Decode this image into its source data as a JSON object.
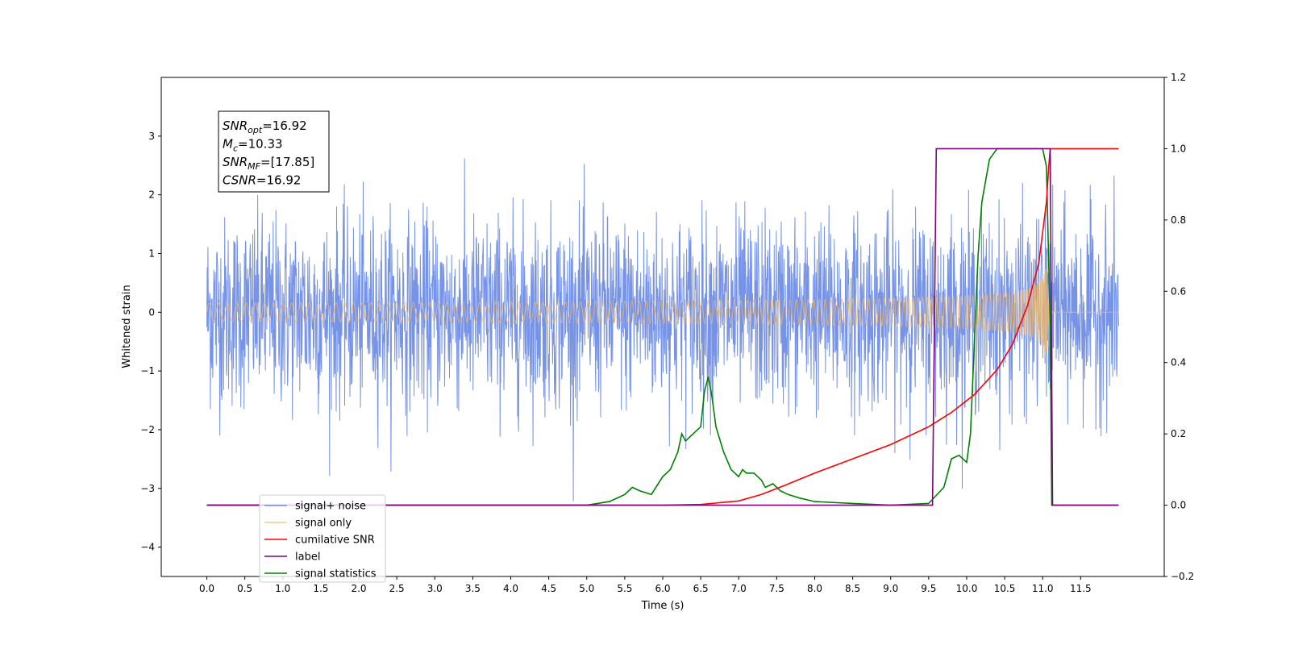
{
  "chart_data": {
    "type": "line",
    "xlabel": "Time (s)",
    "ylabel": "Whitened strain",
    "xlim": [
      -0.6,
      12.6
    ],
    "ylim": [
      -4.5,
      4.0
    ],
    "ylim_right": [
      -0.2,
      1.2
    ],
    "x_ticks": [
      "0.0",
      "0.5",
      "1.0",
      "1.5",
      "2.0",
      "2.5",
      "3.0",
      "3.5",
      "4.0",
      "4.5",
      "5.0",
      "5.5",
      "6.0",
      "6.5",
      "7.0",
      "7.5",
      "8.0",
      "8.5",
      "9.0",
      "9.5",
      "10.0",
      "10.5",
      "11.0",
      "11.5"
    ],
    "y_ticks_left": [
      "3",
      "2",
      "1",
      "0",
      "−1",
      "−2",
      "−3",
      "−4"
    ],
    "y_ticks_right": [
      "1.2",
      "1.0",
      "0.8",
      "0.6",
      "0.4",
      "0.2",
      "0.0",
      "−0.2"
    ],
    "legend_position": "lower-left",
    "colors": {
      "signal_noise": "#6f8de6",
      "signal_only": "#f2b865",
      "cumulative_snr": "#ff0000",
      "label": "#800080",
      "signal_statistics": "#008000"
    },
    "annotation": {
      "lines": [
        {
          "base": "SNR",
          "sub": "opt",
          "value": "=16.92"
        },
        {
          "base": "M",
          "sub": "c",
          "value": "=10.33"
        },
        {
          "base": "SNR",
          "sub": "MF",
          "value": "=[17.85]"
        },
        {
          "base": "CSNR",
          "sub": "",
          "value": "=16.92"
        }
      ]
    },
    "series": [
      {
        "name": "signal+ noise",
        "axis": "left",
        "x_range": [
          0,
          12
        ],
        "amplitude_sigma": 0.8
      },
      {
        "name": "signal only",
        "axis": "left",
        "x_range": [
          0,
          12
        ],
        "chirp_merger_time": 11.05,
        "peak_amplitude": 1.1
      },
      {
        "name": "cumilative SNR",
        "axis": "right",
        "x": [
          0,
          6.0,
          6.5,
          7.0,
          7.3,
          7.6,
          8.0,
          8.5,
          9.0,
          9.5,
          9.8,
          10.1,
          10.4,
          10.6,
          10.8,
          10.95,
          11.05,
          11.08,
          11.1,
          12.0
        ],
        "y": [
          0,
          0,
          0.002,
          0.012,
          0.03,
          0.055,
          0.09,
          0.13,
          0.17,
          0.22,
          0.26,
          0.31,
          0.38,
          0.45,
          0.56,
          0.68,
          0.85,
          0.95,
          1.0,
          1.0
        ]
      },
      {
        "name": "label",
        "axis": "right",
        "x": [
          0,
          9.55,
          9.6,
          11.1,
          11.13,
          12.0
        ],
        "y": [
          0,
          0,
          1.0,
          1.0,
          0,
          0
        ]
      },
      {
        "name": "signal statistics",
        "axis": "right",
        "x": [
          0,
          2.0,
          3.0,
          4.0,
          5.0,
          5.3,
          5.5,
          5.6,
          5.7,
          5.85,
          6.0,
          6.1,
          6.2,
          6.25,
          6.3,
          6.4,
          6.5,
          6.55,
          6.6,
          6.65,
          6.7,
          6.8,
          6.9,
          7.0,
          7.05,
          7.1,
          7.2,
          7.3,
          7.35,
          7.45,
          7.55,
          7.65,
          7.8,
          8.0,
          8.5,
          9.0,
          9.5,
          9.7,
          9.8,
          9.9,
          10.0,
          10.05,
          10.1,
          10.15,
          10.2,
          10.3,
          10.4,
          10.6,
          11.0,
          11.05,
          11.1,
          11.12,
          12.0
        ],
        "y": [
          0,
          0,
          0,
          0,
          0,
          0.01,
          0.03,
          0.05,
          0.04,
          0.03,
          0.08,
          0.1,
          0.15,
          0.2,
          0.18,
          0.2,
          0.22,
          0.32,
          0.36,
          0.3,
          0.22,
          0.15,
          0.1,
          0.08,
          0.1,
          0.09,
          0.09,
          0.07,
          0.05,
          0.06,
          0.04,
          0.03,
          0.02,
          0.01,
          0.005,
          0,
          0.005,
          0.05,
          0.13,
          0.14,
          0.12,
          0.2,
          0.45,
          0.7,
          0.85,
          0.97,
          1.0,
          1.0,
          1.0,
          0.95,
          0.5,
          0,
          0
        ]
      }
    ]
  }
}
